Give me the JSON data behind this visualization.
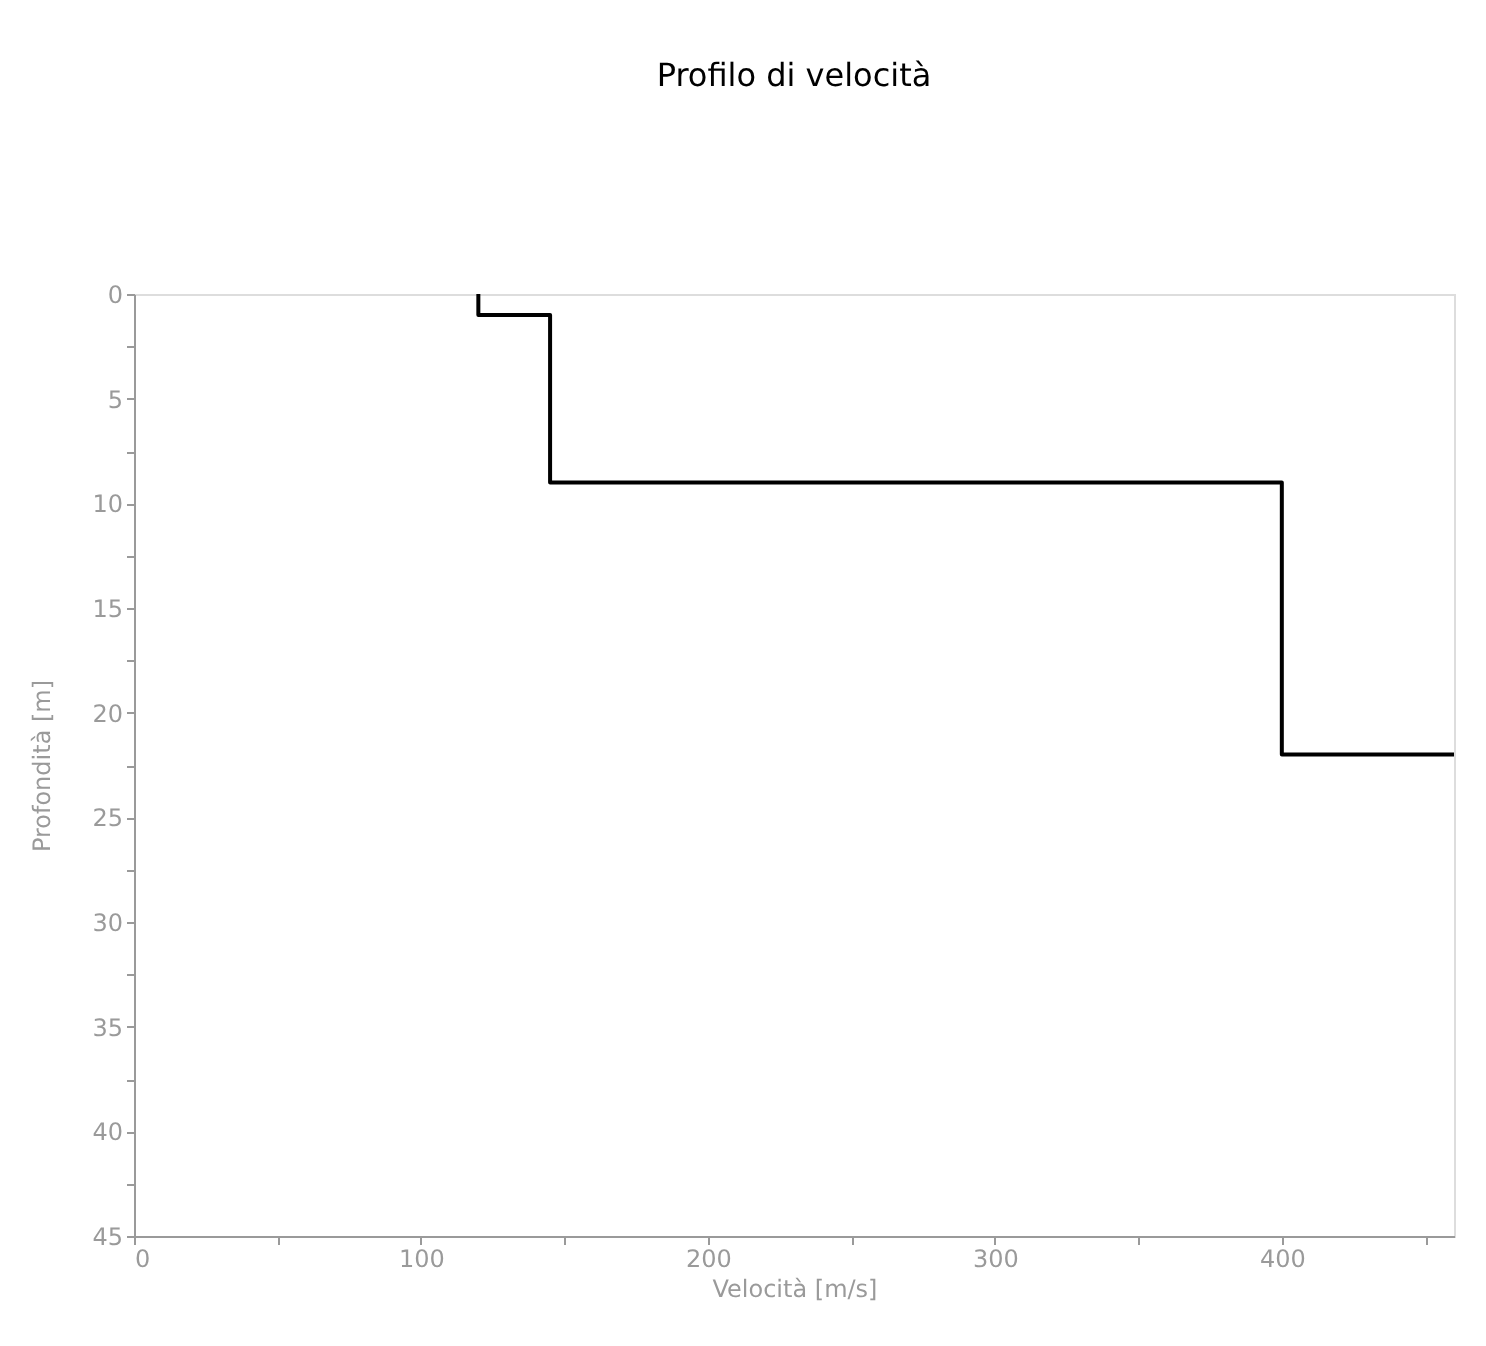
{
  "chart_data": {
    "type": "line",
    "title": "Profilo di velocità",
    "xlabel": "Velocità [m/s]",
    "ylabel": "Profondità [m]",
    "series": [
      {
        "color": "#000000",
        "x": [
          120,
          120,
          145,
          145,
          400,
          400,
          460
        ],
        "values": [
          0,
          1,
          1,
          9,
          9,
          22,
          22
        ]
      }
    ],
    "xlim": [
      0,
      460
    ],
    "ylim": [
      45,
      0
    ],
    "xticks": [
      0,
      {
        "value": 50,
        "label": null
      },
      100,
      {
        "value": 150,
        "label": null
      },
      200,
      {
        "value": 250,
        "label": null
      },
      300,
      {
        "value": 350,
        "label": null
      },
      400,
      {
        "value": 450,
        "label": null
      }
    ],
    "yticks": [
      0,
      {
        "value": 2.5,
        "label": null
      },
      5,
      {
        "value": 7.5,
        "label": null
      },
      10,
      {
        "value": 12.5,
        "label": null
      },
      15,
      {
        "value": 17.5,
        "label": null
      },
      20,
      {
        "value": 22.5,
        "label": null
      },
      25,
      {
        "value": 27.5,
        "label": null
      },
      30,
      {
        "value": 32.5,
        "label": null
      },
      35,
      {
        "value": 37.5,
        "label": null
      },
      40,
      {
        "value": 42.5,
        "label": null
      },
      45
    ],
    "grid": false,
    "marker": "none",
    "line_style": "solid"
  }
}
